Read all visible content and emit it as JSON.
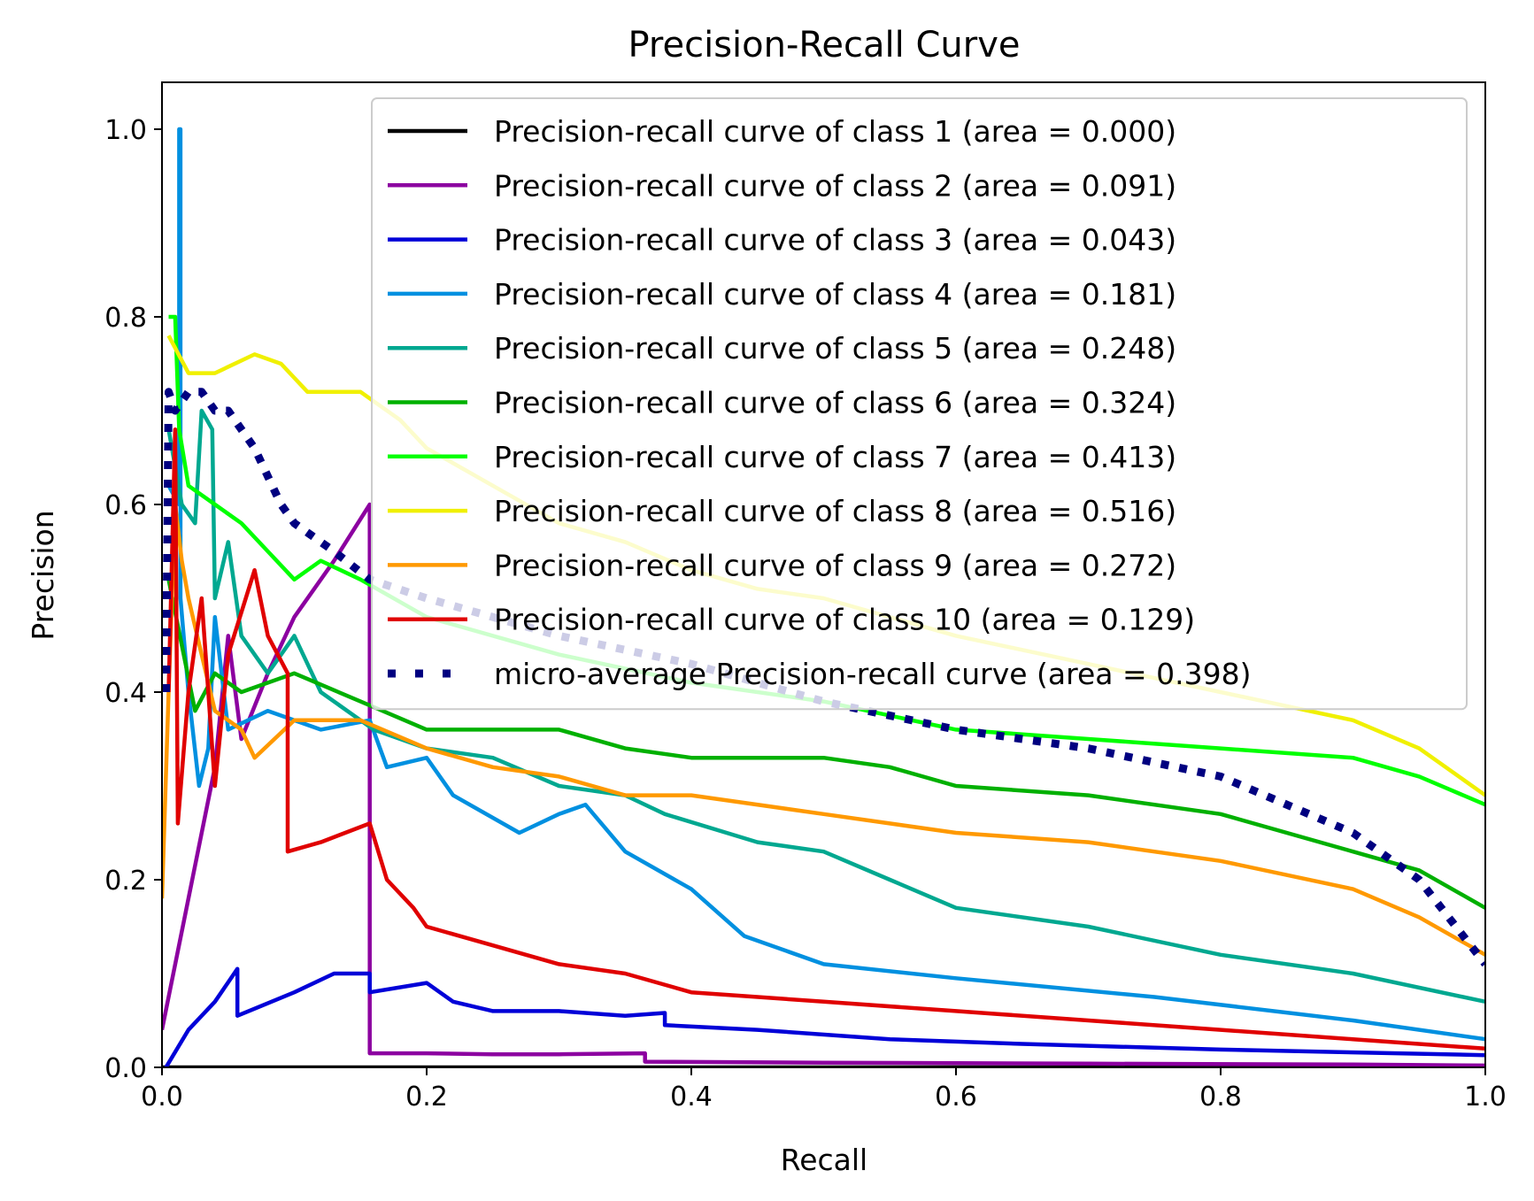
{
  "chart_data": {
    "type": "line",
    "title": "Precision-Recall Curve",
    "xlabel": "Recall",
    "ylabel": "Precision",
    "xlim": [
      0.0,
      1.0
    ],
    "ylim": [
      0.0,
      1.05
    ],
    "x_ticks": [
      "0.0",
      "0.2",
      "0.4",
      "0.6",
      "0.8",
      "1.0"
    ],
    "y_ticks": [
      "0.0",
      "0.2",
      "0.4",
      "0.6",
      "0.8",
      "1.0"
    ],
    "grid": false,
    "legend_position": "upper-right",
    "series": [
      {
        "name": "Precision-recall curve of class 1 (area = 0.000)",
        "color": "#000000",
        "style": "solid",
        "points": [
          [
            0.0,
            0.0
          ],
          [
            1.0,
            0.0
          ]
        ]
      },
      {
        "name": "Precision-recall curve of class 2 (area = 0.091)",
        "color": "#8c00a0",
        "style": "solid",
        "points": [
          [
            0.0,
            0.04
          ],
          [
            0.02,
            0.18
          ],
          [
            0.04,
            0.32
          ],
          [
            0.05,
            0.46
          ],
          [
            0.06,
            0.35
          ],
          [
            0.08,
            0.42
          ],
          [
            0.1,
            0.48
          ],
          [
            0.13,
            0.54
          ],
          [
            0.157,
            0.6
          ],
          [
            0.157,
            0.015
          ],
          [
            0.2,
            0.015
          ],
          [
            0.25,
            0.014
          ],
          [
            0.3,
            0.014
          ],
          [
            0.365,
            0.015
          ],
          [
            0.365,
            0.006
          ],
          [
            0.5,
            0.005
          ],
          [
            0.7,
            0.004
          ],
          [
            0.9,
            0.003
          ],
          [
            1.0,
            0.002
          ]
        ]
      },
      {
        "name": "Precision-recall curve of class 3 (area = 0.043)",
        "color": "#0000d8",
        "style": "solid",
        "points": [
          [
            0.003,
            0.0
          ],
          [
            0.02,
            0.04
          ],
          [
            0.04,
            0.07
          ],
          [
            0.057,
            0.105
          ],
          [
            0.057,
            0.055
          ],
          [
            0.1,
            0.08
          ],
          [
            0.13,
            0.1
          ],
          [
            0.157,
            0.1
          ],
          [
            0.157,
            0.08
          ],
          [
            0.2,
            0.09
          ],
          [
            0.22,
            0.07
          ],
          [
            0.25,
            0.06
          ],
          [
            0.3,
            0.06
          ],
          [
            0.35,
            0.055
          ],
          [
            0.38,
            0.058
          ],
          [
            0.38,
            0.045
          ],
          [
            0.45,
            0.04
          ],
          [
            0.55,
            0.03
          ],
          [
            0.65,
            0.025
          ],
          [
            0.8,
            0.019
          ],
          [
            1.0,
            0.013
          ]
        ]
      },
      {
        "name": "Precision-recall curve of class 4 (area = 0.181)",
        "color": "#0090e0",
        "style": "solid",
        "points": [
          [
            0.005,
            0.62
          ],
          [
            0.013,
            0.6
          ],
          [
            0.013,
            1.0
          ],
          [
            0.014,
            1.0
          ],
          [
            0.014,
            0.5
          ],
          [
            0.02,
            0.4
          ],
          [
            0.028,
            0.3
          ],
          [
            0.035,
            0.34
          ],
          [
            0.04,
            0.48
          ],
          [
            0.05,
            0.36
          ],
          [
            0.08,
            0.38
          ],
          [
            0.12,
            0.36
          ],
          [
            0.157,
            0.37
          ],
          [
            0.17,
            0.32
          ],
          [
            0.2,
            0.33
          ],
          [
            0.22,
            0.29
          ],
          [
            0.27,
            0.25
          ],
          [
            0.3,
            0.27
          ],
          [
            0.32,
            0.28
          ],
          [
            0.35,
            0.23
          ],
          [
            0.4,
            0.19
          ],
          [
            0.44,
            0.14
          ],
          [
            0.5,
            0.11
          ],
          [
            0.6,
            0.095
          ],
          [
            0.75,
            0.075
          ],
          [
            0.9,
            0.05
          ],
          [
            1.0,
            0.03
          ]
        ]
      },
      {
        "name": "Precision-recall curve of class 5 (area = 0.248)",
        "color": "#00a890",
        "style": "solid",
        "points": [
          [
            0.005,
            0.68
          ],
          [
            0.015,
            0.6
          ],
          [
            0.025,
            0.58
          ],
          [
            0.03,
            0.7
          ],
          [
            0.038,
            0.68
          ],
          [
            0.04,
            0.5
          ],
          [
            0.05,
            0.56
          ],
          [
            0.06,
            0.46
          ],
          [
            0.08,
            0.42
          ],
          [
            0.1,
            0.46
          ],
          [
            0.12,
            0.4
          ],
          [
            0.16,
            0.36
          ],
          [
            0.2,
            0.34
          ],
          [
            0.25,
            0.33
          ],
          [
            0.3,
            0.3
          ],
          [
            0.35,
            0.29
          ],
          [
            0.38,
            0.27
          ],
          [
            0.45,
            0.24
          ],
          [
            0.5,
            0.23
          ],
          [
            0.55,
            0.2
          ],
          [
            0.6,
            0.17
          ],
          [
            0.7,
            0.15
          ],
          [
            0.8,
            0.12
          ],
          [
            0.9,
            0.1
          ],
          [
            1.0,
            0.07
          ]
        ]
      },
      {
        "name": "Precision-recall curve of class 6 (area = 0.324)",
        "color": "#00b000",
        "style": "solid",
        "points": [
          [
            0.005,
            0.52
          ],
          [
            0.015,
            0.45
          ],
          [
            0.025,
            0.38
          ],
          [
            0.04,
            0.42
          ],
          [
            0.06,
            0.4
          ],
          [
            0.1,
            0.42
          ],
          [
            0.15,
            0.39
          ],
          [
            0.2,
            0.36
          ],
          [
            0.25,
            0.36
          ],
          [
            0.3,
            0.36
          ],
          [
            0.35,
            0.34
          ],
          [
            0.4,
            0.33
          ],
          [
            0.45,
            0.33
          ],
          [
            0.5,
            0.33
          ],
          [
            0.55,
            0.32
          ],
          [
            0.6,
            0.3
          ],
          [
            0.7,
            0.29
          ],
          [
            0.8,
            0.27
          ],
          [
            0.9,
            0.23
          ],
          [
            0.95,
            0.21
          ],
          [
            1.0,
            0.17
          ]
        ]
      },
      {
        "name": "Precision-recall curve of class 7 (area = 0.413)",
        "color": "#00ff00",
        "style": "solid",
        "points": [
          [
            0.005,
            0.8
          ],
          [
            0.01,
            0.8
          ],
          [
            0.013,
            0.68
          ],
          [
            0.02,
            0.62
          ],
          [
            0.04,
            0.6
          ],
          [
            0.06,
            0.58
          ],
          [
            0.08,
            0.55
          ],
          [
            0.1,
            0.52
          ],
          [
            0.12,
            0.54
          ],
          [
            0.15,
            0.52
          ],
          [
            0.2,
            0.48
          ],
          [
            0.3,
            0.44
          ],
          [
            0.4,
            0.41
          ],
          [
            0.5,
            0.39
          ],
          [
            0.6,
            0.36
          ],
          [
            0.7,
            0.35
          ],
          [
            0.8,
            0.34
          ],
          [
            0.9,
            0.33
          ],
          [
            0.95,
            0.31
          ],
          [
            1.0,
            0.28
          ]
        ]
      },
      {
        "name": "Precision-recall curve of class 8 (area = 0.516)",
        "color": "#f0f000",
        "style": "solid",
        "points": [
          [
            0.005,
            0.78
          ],
          [
            0.02,
            0.74
          ],
          [
            0.04,
            0.74
          ],
          [
            0.07,
            0.76
          ],
          [
            0.09,
            0.75
          ],
          [
            0.11,
            0.72
          ],
          [
            0.15,
            0.72
          ],
          [
            0.18,
            0.69
          ],
          [
            0.2,
            0.66
          ],
          [
            0.25,
            0.62
          ],
          [
            0.3,
            0.58
          ],
          [
            0.35,
            0.56
          ],
          [
            0.4,
            0.53
          ],
          [
            0.45,
            0.51
          ],
          [
            0.5,
            0.5
          ],
          [
            0.6,
            0.46
          ],
          [
            0.7,
            0.43
          ],
          [
            0.8,
            0.4
          ],
          [
            0.9,
            0.37
          ],
          [
            0.95,
            0.34
          ],
          [
            1.0,
            0.29
          ]
        ]
      },
      {
        "name": "Precision-recall curve of class 9 (area = 0.272)",
        "color": "#ff9900",
        "style": "solid",
        "points": [
          [
            0.0,
            0.18
          ],
          [
            0.005,
            0.4
          ],
          [
            0.01,
            0.6
          ],
          [
            0.015,
            0.54
          ],
          [
            0.02,
            0.5
          ],
          [
            0.03,
            0.44
          ],
          [
            0.04,
            0.38
          ],
          [
            0.06,
            0.36
          ],
          [
            0.07,
            0.33
          ],
          [
            0.1,
            0.37
          ],
          [
            0.15,
            0.37
          ],
          [
            0.2,
            0.34
          ],
          [
            0.25,
            0.32
          ],
          [
            0.3,
            0.31
          ],
          [
            0.35,
            0.29
          ],
          [
            0.4,
            0.29
          ],
          [
            0.5,
            0.27
          ],
          [
            0.6,
            0.25
          ],
          [
            0.7,
            0.24
          ],
          [
            0.8,
            0.22
          ],
          [
            0.9,
            0.19
          ],
          [
            0.95,
            0.16
          ],
          [
            1.0,
            0.12
          ]
        ]
      },
      {
        "name": "Precision-recall curve of class 10 (area = 0.129)",
        "color": "#e00000",
        "style": "solid",
        "points": [
          [
            0.005,
            0.4
          ],
          [
            0.01,
            0.68
          ],
          [
            0.012,
            0.26
          ],
          [
            0.02,
            0.4
          ],
          [
            0.03,
            0.5
          ],
          [
            0.04,
            0.3
          ],
          [
            0.05,
            0.44
          ],
          [
            0.07,
            0.53
          ],
          [
            0.08,
            0.46
          ],
          [
            0.095,
            0.42
          ],
          [
            0.095,
            0.23
          ],
          [
            0.12,
            0.24
          ],
          [
            0.157,
            0.26
          ],
          [
            0.17,
            0.2
          ],
          [
            0.19,
            0.17
          ],
          [
            0.2,
            0.15
          ],
          [
            0.25,
            0.13
          ],
          [
            0.3,
            0.11
          ],
          [
            0.35,
            0.1
          ],
          [
            0.4,
            0.08
          ],
          [
            0.5,
            0.07
          ],
          [
            0.6,
            0.06
          ],
          [
            0.7,
            0.05
          ],
          [
            0.8,
            0.04
          ],
          [
            0.9,
            0.03
          ],
          [
            1.0,
            0.02
          ]
        ]
      },
      {
        "name": "micro-average Precision-recall curve (area = 0.398)",
        "color": "#000080",
        "style": "dotted",
        "points": [
          [
            0.003,
            0.4
          ],
          [
            0.005,
            0.72
          ],
          [
            0.01,
            0.7
          ],
          [
            0.02,
            0.72
          ],
          [
            0.03,
            0.72
          ],
          [
            0.04,
            0.7
          ],
          [
            0.05,
            0.7
          ],
          [
            0.07,
            0.66
          ],
          [
            0.09,
            0.6
          ],
          [
            0.1,
            0.58
          ],
          [
            0.13,
            0.55
          ],
          [
            0.157,
            0.52
          ],
          [
            0.2,
            0.5
          ],
          [
            0.3,
            0.46
          ],
          [
            0.4,
            0.43
          ],
          [
            0.5,
            0.39
          ],
          [
            0.6,
            0.36
          ],
          [
            0.7,
            0.34
          ],
          [
            0.8,
            0.31
          ],
          [
            0.9,
            0.25
          ],
          [
            0.95,
            0.2
          ],
          [
            1.0,
            0.11
          ]
        ]
      }
    ]
  }
}
